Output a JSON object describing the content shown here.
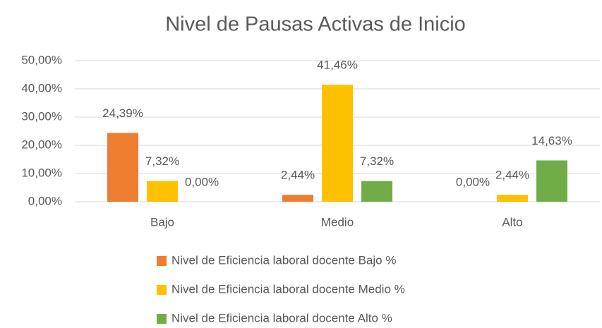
{
  "chart_data": {
    "type": "bar",
    "title": "Nivel de Pausas Activas de Inicio",
    "categories": [
      "Bajo",
      "Medio",
      "Alto"
    ],
    "series": [
      {
        "name": "Nivel de Eficiencia laboral docente Bajo %",
        "color": "#ed7d31",
        "values": [
          24.39,
          2.44,
          0
        ],
        "value_labels": [
          "24,39%",
          "2,44%",
          "0,00%"
        ]
      },
      {
        "name": "Nivel de Eficiencia laboral docente Medio %",
        "color": "#ffc000",
        "values": [
          7.32,
          41.46,
          2.44
        ],
        "value_labels": [
          "7,32%",
          "41,46%",
          "2,44%"
        ]
      },
      {
        "name": "Nivel de Eficiencia laboral docente Alto %",
        "color": "#70ad47",
        "values": [
          0,
          7.32,
          14.63
        ],
        "value_labels": [
          "0,00%",
          "7,32%",
          "14,63%"
        ]
      }
    ],
    "ylim": [
      0,
      50
    ],
    "yticks": [
      {
        "value": 0,
        "label": "0,00%"
      },
      {
        "value": 10,
        "label": "10,00%"
      },
      {
        "value": 20,
        "label": "20,00%"
      },
      {
        "value": 30,
        "label": "30,00%"
      },
      {
        "value": 40,
        "label": "40,00%"
      },
      {
        "value": 50,
        "label": "50,00%"
      }
    ],
    "grid": true
  }
}
